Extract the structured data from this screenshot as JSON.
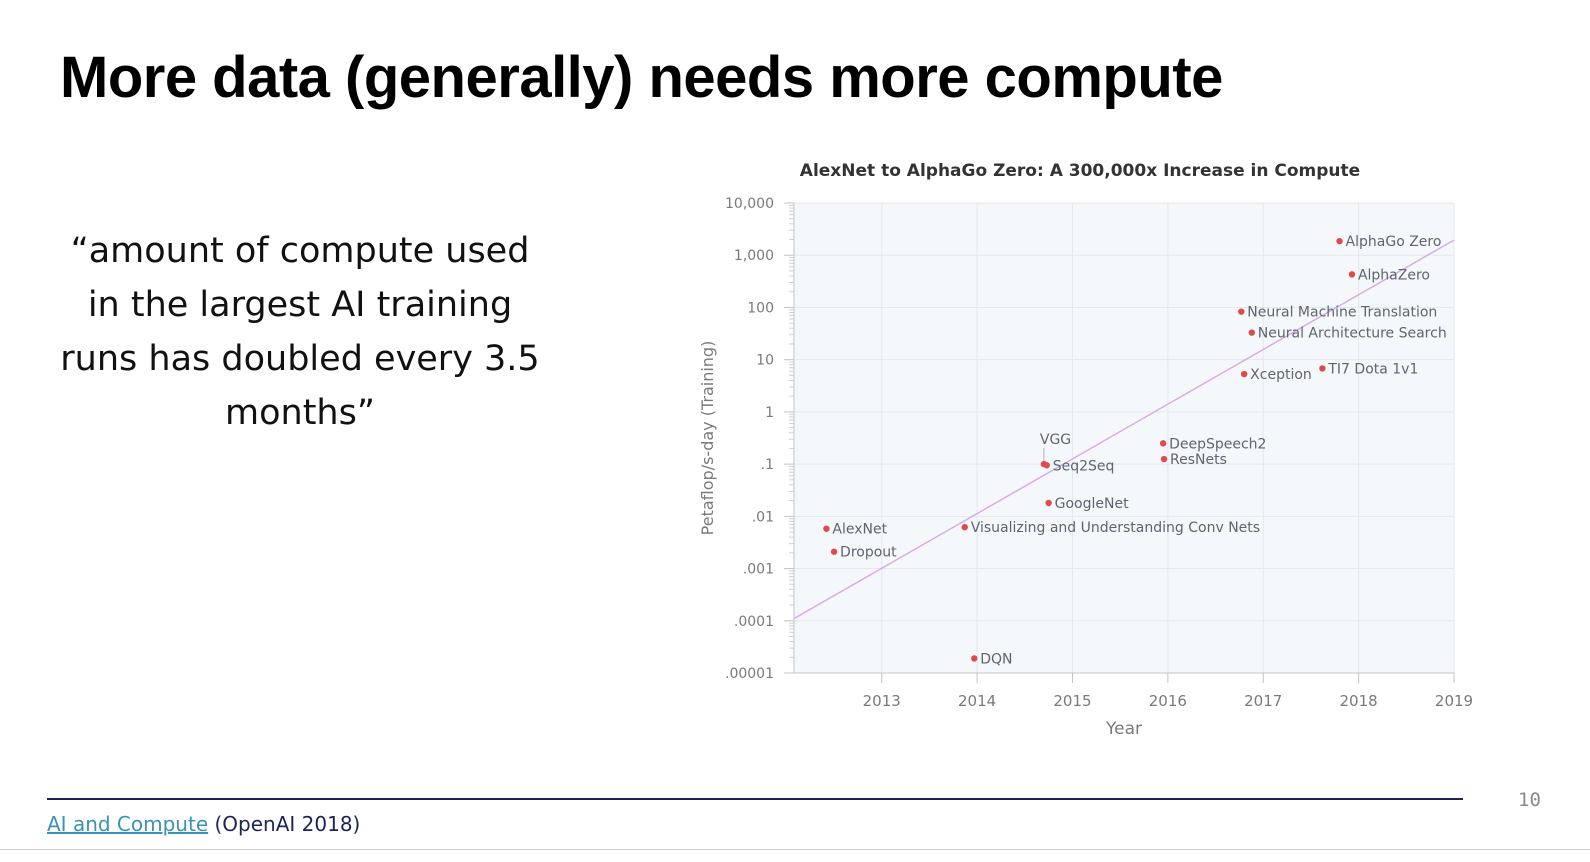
{
  "slide": {
    "title": "More data (generally) needs more compute",
    "quote": "“amount of compute used in the largest AI training runs has doubled every 3.5 months”",
    "footer_link": "AI and Compute",
    "footer_rest": " (OpenAI 2018)",
    "page_number": "10"
  },
  "colors": {
    "point": "#e04a4a",
    "trend": "#d9a8e6",
    "plot_bg": "#f4f8fa",
    "axis_text": "#7a7a7a",
    "label_text": "#5f6470"
  },
  "chart_data": {
    "type": "scatter",
    "title": "AlexNet to AlphaGo Zero: A 300,000x Increase in Compute",
    "xlabel": "Year",
    "ylabel": "Petaflop/s-day (Training)",
    "y_scale": "log",
    "xlim": [
      2012.08,
      2019
    ],
    "ylim": [
      1e-05,
      10000
    ],
    "x_ticks": [
      2013,
      2014,
      2015,
      2016,
      2017,
      2018,
      2019
    ],
    "x_tick_labels": [
      "2013",
      "2014",
      "2015",
      "2016",
      "2017",
      "2018",
      "2019"
    ],
    "y_ticks": [
      1e-05,
      0.0001,
      0.001,
      0.01,
      0.1,
      1,
      10,
      100,
      1000,
      10000
    ],
    "y_tick_labels": [
      ".00001",
      ".0001",
      ".001",
      ".01",
      ".1",
      "1",
      "10",
      "100",
      "1,000",
      "10,000"
    ],
    "grid": true,
    "trend_line": {
      "x": [
        2012.08,
        2019
      ],
      "y": [
        0.00011,
        1950
      ]
    },
    "points": [
      {
        "label": "AlexNet",
        "x": 2012.42,
        "y": 0.0058
      },
      {
        "label": "Dropout",
        "x": 2012.5,
        "y": 0.0021
      },
      {
        "label": "DQN",
        "x": 2013.97,
        "y": 1.9e-05
      },
      {
        "label": "Visualizing and Understanding Conv Nets",
        "x": 2013.87,
        "y": 0.0062
      },
      {
        "label": "VGG",
        "x": 2014.7,
        "y": 0.1
      },
      {
        "label": "Seq2Seq",
        "x": 2014.73,
        "y": 0.095
      },
      {
        "label": "GoogleNet",
        "x": 2014.75,
        "y": 0.018
      },
      {
        "label": "DeepSpeech2",
        "x": 2015.95,
        "y": 0.25
      },
      {
        "label": "ResNets",
        "x": 2015.96,
        "y": 0.125
      },
      {
        "label": "Xception",
        "x": 2016.8,
        "y": 5.3
      },
      {
        "label": "Neural Machine Translation",
        "x": 2016.77,
        "y": 83
      },
      {
        "label": "Neural Architecture Search",
        "x": 2016.88,
        "y": 33
      },
      {
        "label": "TI7 Dota 1v1",
        "x": 2017.62,
        "y": 6.8
      },
      {
        "label": "AlphaZero",
        "x": 2017.93,
        "y": 430
      },
      {
        "label": "AlphaGo Zero",
        "x": 2017.8,
        "y": 1860
      }
    ]
  }
}
